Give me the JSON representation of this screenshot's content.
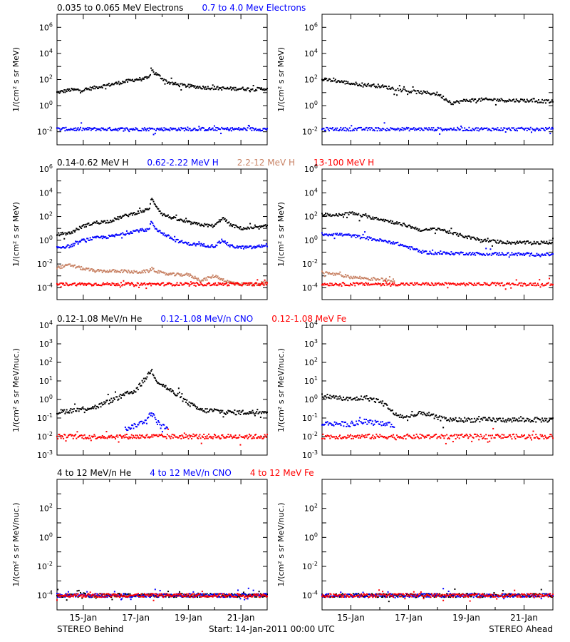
{
  "footer": {
    "left": "STEREO Behind",
    "center": "Start: 14-Jan-2011 00:00 UTC",
    "right": "STEREO Ahead"
  },
  "x_tick_labels": [
    "15-Jan",
    "17-Jan",
    "19-Jan",
    "21-Jan"
  ],
  "colors": {
    "black": "#000000",
    "blue": "#0000ff",
    "tan": "#c88264",
    "red": "#ff0000"
  },
  "chart_data": [
    {
      "type": "scatter",
      "row": 1,
      "title": "0.035 to 0.065 MeV Electrons   0.7 to 4.0 Mev Electrons",
      "legend": [
        {
          "label": "0.035 to 0.065 MeV Electrons",
          "color": "#000000"
        },
        {
          "label": "0.7 to 4.0 Mev Electrons",
          "color": "#0000ff"
        }
      ],
      "ylabel": "1/(cm² s sr MeV)",
      "y_log": true,
      "ylim_exp": [
        -3,
        7
      ],
      "y_ticks": [
        {
          "base": "10",
          "exp": "6",
          "value": 6
        },
        {
          "base": "10",
          "exp": "4",
          "value": 4
        },
        {
          "base": "10",
          "exp": "2",
          "value": 2
        },
        {
          "base": "10",
          "exp": "0",
          "value": 0
        },
        {
          "base": "10",
          "exp": "-2",
          "value": -2
        }
      ],
      "x_unit": "days since 14-Jan-2011 00:00 UTC",
      "xlim": [
        0,
        8
      ],
      "panels": {
        "behind": [
          {
            "name": "0.035 to 0.065 MeV Electrons",
            "color": "#000000",
            "x": [
              0,
              0.5,
              1,
              1.5,
              2,
              2.5,
              3,
              3.5,
              3.6,
              3.7,
              3.8,
              4.2,
              4.6,
              5,
              5.5,
              6,
              6.5,
              7,
              7.5,
              8
            ],
            "y": [
              1.0,
              1.2,
              1.2,
              1.4,
              1.6,
              1.8,
              2.0,
              2.1,
              2.8,
              2.5,
              2.4,
              1.8,
              1.6,
              1.5,
              1.4,
              1.35,
              1.3,
              1.3,
              1.25,
              1.3
            ]
          },
          {
            "name": "0.7 to 4.0 Mev Electrons",
            "color": "#0000ff",
            "x": [
              0,
              8
            ],
            "y": [
              -1.8,
              -1.8
            ]
          }
        ],
        "ahead": [
          {
            "name": "0.035 to 0.065 MeV Electrons",
            "color": "#000000",
            "x": [
              0,
              0.5,
              1,
              1.5,
              2,
              2.5,
              3,
              3.5,
              4,
              4.5,
              5,
              5.5,
              6,
              6.5,
              7,
              7.5,
              8
            ],
            "y": [
              2.0,
              1.9,
              1.7,
              1.6,
              1.5,
              1.3,
              1.1,
              1.0,
              0.9,
              0.2,
              0.4,
              0.45,
              0.45,
              0.4,
              0.4,
              0.35,
              0.3
            ]
          },
          {
            "name": "0.7 to 4.0 Mev Electrons",
            "color": "#0000ff",
            "x": [
              0,
              8
            ],
            "y": [
              -1.8,
              -1.8
            ]
          }
        ]
      }
    },
    {
      "type": "scatter",
      "row": 2,
      "title": "0.14-0.62 MeV H   0.62-2.22 MeV H   2.2-12 MeV H   13-100 MeV H",
      "legend": [
        {
          "label": "0.14-0.62 MeV H",
          "color": "#000000"
        },
        {
          "label": "0.62-2.22 MeV H",
          "color": "#0000ff"
        },
        {
          "label": "2.2-12 MeV H",
          "color": "#c88264"
        },
        {
          "label": "13-100 MeV H",
          "color": "#ff0000"
        }
      ],
      "ylabel": "1/(cm² s sr MeV)",
      "y_log": true,
      "ylim_exp": [
        -5,
        6
      ],
      "y_ticks": [
        {
          "base": "10",
          "exp": "6",
          "value": 6
        },
        {
          "base": "10",
          "exp": "4",
          "value": 4
        },
        {
          "base": "10",
          "exp": "2",
          "value": 2
        },
        {
          "base": "10",
          "exp": "0",
          "value": 0
        },
        {
          "base": "10",
          "exp": "-2",
          "value": -2
        },
        {
          "base": "10",
          "exp": "-4",
          "value": -4
        }
      ],
      "x_unit": "days since 14-Jan-2011 00:00 UTC",
      "xlim": [
        0,
        8
      ],
      "panels": {
        "behind": [
          {
            "name": "0.14-0.62 MeV H",
            "color": "#000000",
            "x": [
              0,
              0.5,
              1,
              1.5,
              2,
              2.5,
              3,
              3.5,
              3.6,
              3.75,
              4,
              4.5,
              5,
              5.5,
              6,
              6.3,
              6.6,
              7,
              7.5,
              8
            ],
            "y": [
              0.5,
              0.6,
              1.2,
              1.5,
              1.6,
              2.0,
              2.3,
              2.6,
              3.5,
              3.0,
              2.2,
              1.8,
              1.5,
              1.3,
              1.2,
              1.9,
              1.3,
              1.0,
              1.0,
              1.2
            ]
          },
          {
            "name": "0.62-2.22 MeV H",
            "color": "#0000ff",
            "x": [
              0,
              0.5,
              1,
              1.5,
              2,
              2.5,
              3,
              3.5,
              3.6,
              3.75,
              4,
              4.5,
              5,
              5.5,
              6,
              6.3,
              6.6,
              7,
              7.5,
              8
            ],
            "y": [
              -0.6,
              -0.5,
              0.0,
              0.2,
              0.3,
              0.5,
              0.8,
              0.9,
              1.6,
              1.0,
              0.6,
              0.0,
              -0.3,
              -0.4,
              -0.5,
              0.0,
              -0.5,
              -0.6,
              -0.6,
              -0.4
            ]
          },
          {
            "name": "2.2-12 MeV H",
            "color": "#c88264",
            "x": [
              0,
              0.5,
              1,
              1.5,
              2,
              2.5,
              3,
              3.5,
              3.6,
              4,
              4.5,
              5,
              5.5,
              6,
              6.5,
              7,
              7.5,
              8
            ],
            "y": [
              -2.3,
              -2.1,
              -2.4,
              -2.6,
              -2.6,
              -2.6,
              -2.7,
              -2.6,
              -2.4,
              -2.8,
              -2.9,
              -2.9,
              -3.4,
              -3.0,
              -3.5,
              -3.7,
              -3.7,
              -3.6
            ]
          },
          {
            "name": "13-100 MeV H",
            "color": "#ff0000",
            "x": [
              0,
              8
            ],
            "y": [
              -3.7,
              -3.7
            ]
          }
        ],
        "ahead": [
          {
            "name": "0.14-0.62 MeV H",
            "color": "#000000",
            "x": [
              0,
              0.5,
              1,
              1.5,
              2,
              2.5,
              3,
              3.5,
              4,
              4.5,
              5,
              5.5,
              6,
              6.5,
              7,
              7.5,
              8
            ],
            "y": [
              2.2,
              2.1,
              2.3,
              2.0,
              1.8,
              1.5,
              1.2,
              0.8,
              1.0,
              0.6,
              0.3,
              0.0,
              -0.1,
              -0.2,
              -0.2,
              -0.2,
              -0.2
            ]
          },
          {
            "name": "0.62-2.22 MeV H",
            "color": "#0000ff",
            "x": [
              0,
              0.5,
              1,
              1.5,
              2,
              2.5,
              3,
              3.5,
              4,
              4.5,
              5,
              5.5,
              6,
              6.5,
              7,
              7.5,
              8
            ],
            "y": [
              0.5,
              0.5,
              0.4,
              0.2,
              0.0,
              -0.2,
              -0.6,
              -1.0,
              -1.1,
              -1.1,
              -1.1,
              -1.15,
              -1.15,
              -1.15,
              -1.2,
              -1.2,
              -1.2
            ]
          },
          {
            "name": "2.2-12 MeV H",
            "color": "#c88264",
            "x": [
              0,
              0.5,
              1,
              1.5,
              2,
              2.5
            ],
            "y": [
              -2.7,
              -2.9,
              -3.1,
              -3.2,
              -3.3,
              -3.4
            ]
          },
          {
            "name": "13-100 MeV H",
            "color": "#ff0000",
            "x": [
              0,
              8
            ],
            "y": [
              -3.7,
              -3.7
            ]
          }
        ]
      }
    },
    {
      "type": "scatter",
      "row": 3,
      "title": "0.12-1.08 MeV/n He   0.12-1.08 MeV/n CNO   0.12-1.08 MeV Fe",
      "legend": [
        {
          "label": "0.12-1.08 MeV/n He",
          "color": "#000000"
        },
        {
          "label": "0.12-1.08 MeV/n CNO",
          "color": "#0000ff"
        },
        {
          "label": "0.12-1.08 MeV Fe",
          "color": "#ff0000"
        }
      ],
      "ylabel": "1/(cm² s sr MeV/nuc.)",
      "y_log": true,
      "ylim_exp": [
        -3,
        4
      ],
      "y_ticks": [
        {
          "base": "10",
          "exp": "4",
          "value": 4
        },
        {
          "base": "10",
          "exp": "3",
          "value": 3
        },
        {
          "base": "10",
          "exp": "2",
          "value": 2
        },
        {
          "base": "10",
          "exp": "1",
          "value": 1
        },
        {
          "base": "10",
          "exp": "0",
          "value": 0
        },
        {
          "base": "10",
          "exp": "-1",
          "value": -1
        },
        {
          "base": "10",
          "exp": "-2",
          "value": -2
        },
        {
          "base": "10",
          "exp": "-3",
          "value": -3
        }
      ],
      "x_unit": "days since 14-Jan-2011 00:00 UTC",
      "xlim": [
        0,
        8
      ],
      "panels": {
        "behind": [
          {
            "name": "0.12-1.08 MeV/n He",
            "color": "#000000",
            "x": [
              0,
              0.5,
              1,
              1.5,
              2,
              2.5,
              3,
              3.3,
              3.6,
              3.8,
              4.2,
              4.6,
              5,
              5.5,
              6,
              6.5,
              7,
              7.5,
              8
            ],
            "y": [
              -0.7,
              -0.6,
              -0.5,
              -0.4,
              -0.1,
              0.2,
              0.5,
              1.0,
              1.6,
              1.0,
              0.6,
              0.2,
              -0.2,
              -0.6,
              -0.6,
              -0.7,
              -0.7,
              -0.7,
              -0.6
            ]
          },
          {
            "name": "0.12-1.08 MeV/n CNO",
            "color": "#0000ff",
            "x": [
              2.6,
              3.0,
              3.4,
              3.6,
              3.8,
              4.2
            ],
            "y": [
              -1.6,
              -1.4,
              -1.1,
              -0.7,
              -1.2,
              -1.6
            ]
          },
          {
            "name": "0.12-1.08 MeV Fe",
            "color": "#ff0000",
            "x": [
              0,
              8
            ],
            "y": [
              -2.0,
              -2.0
            ]
          }
        ],
        "ahead": [
          {
            "name": "0.12-1.08 MeV/n He",
            "color": "#000000",
            "x": [
              0,
              0.5,
              1,
              1.5,
              2,
              2.3,
              2.5,
              3,
              3.5,
              4,
              4.5,
              5,
              5.5,
              6,
              6.5,
              7,
              7.5,
              8
            ],
            "y": [
              0.2,
              0.1,
              0.0,
              0.1,
              -0.1,
              -0.4,
              -0.8,
              -1.0,
              -0.7,
              -1.0,
              -1.1,
              -1.1,
              -1.1,
              -1.1,
              -1.1,
              -1.1,
              -1.1,
              -1.1
            ]
          },
          {
            "name": "0.12-1.08 MeV/n CNO",
            "color": "#0000ff",
            "x": [
              0,
              0.5,
              1,
              1.5,
              2,
              2.5
            ],
            "y": [
              -1.3,
              -1.3,
              -1.35,
              -1.2,
              -1.3,
              -1.4
            ]
          },
          {
            "name": "0.12-1.08 MeV Fe",
            "color": "#ff0000",
            "x": [
              0,
              8
            ],
            "y": [
              -2.0,
              -2.0
            ]
          }
        ]
      }
    },
    {
      "type": "scatter",
      "row": 4,
      "title": "4 to 12 MeV/n He   4 to 12 MeV/n CNO   4 to 12 MeV Fe",
      "legend": [
        {
          "label": "4 to 12 MeV/n He",
          "color": "#000000"
        },
        {
          "label": "4 to 12 MeV/n CNO",
          "color": "#0000ff"
        },
        {
          "label": "4 to 12 MeV Fe",
          "color": "#ff0000"
        }
      ],
      "ylabel": "1/(cm² s sr MeV/nuc.)",
      "y_log": true,
      "ylim_exp": [
        -5,
        4
      ],
      "y_ticks": [
        {
          "base": "10",
          "exp": "2",
          "value": 2
        },
        {
          "base": "10",
          "exp": "0",
          "value": 0
        },
        {
          "base": "10",
          "exp": "-2",
          "value": -2
        },
        {
          "base": "10",
          "exp": "-4",
          "value": -4
        }
      ],
      "x_unit": "days since 14-Jan-2011 00:00 UTC",
      "xlim": [
        0,
        8
      ],
      "panels": {
        "behind": [
          {
            "name": "4 to 12 MeV/n He",
            "color": "#000000",
            "x": [
              0,
              8
            ],
            "y": [
              -4.0,
              -4.0
            ]
          },
          {
            "name": "4 to 12 MeV/n CNO",
            "color": "#0000ff",
            "x": [
              0,
              8
            ],
            "y": [
              -4.0,
              -4.0
            ]
          },
          {
            "name": "4 to 12 MeV Fe",
            "color": "#ff0000",
            "x": [
              0,
              8
            ],
            "y": [
              -4.0,
              -4.0
            ]
          }
        ],
        "ahead": [
          {
            "name": "4 to 12 MeV/n He",
            "color": "#000000",
            "x": [
              0,
              8
            ],
            "y": [
              -4.0,
              -4.0
            ]
          },
          {
            "name": "4 to 12 MeV/n CNO",
            "color": "#0000ff",
            "x": [
              0,
              8
            ],
            "y": [
              -4.0,
              -4.0
            ]
          },
          {
            "name": "4 to 12 MeV Fe",
            "color": "#ff0000",
            "x": [
              0,
              8
            ],
            "y": [
              -4.0,
              -4.0
            ]
          }
        ]
      }
    }
  ]
}
